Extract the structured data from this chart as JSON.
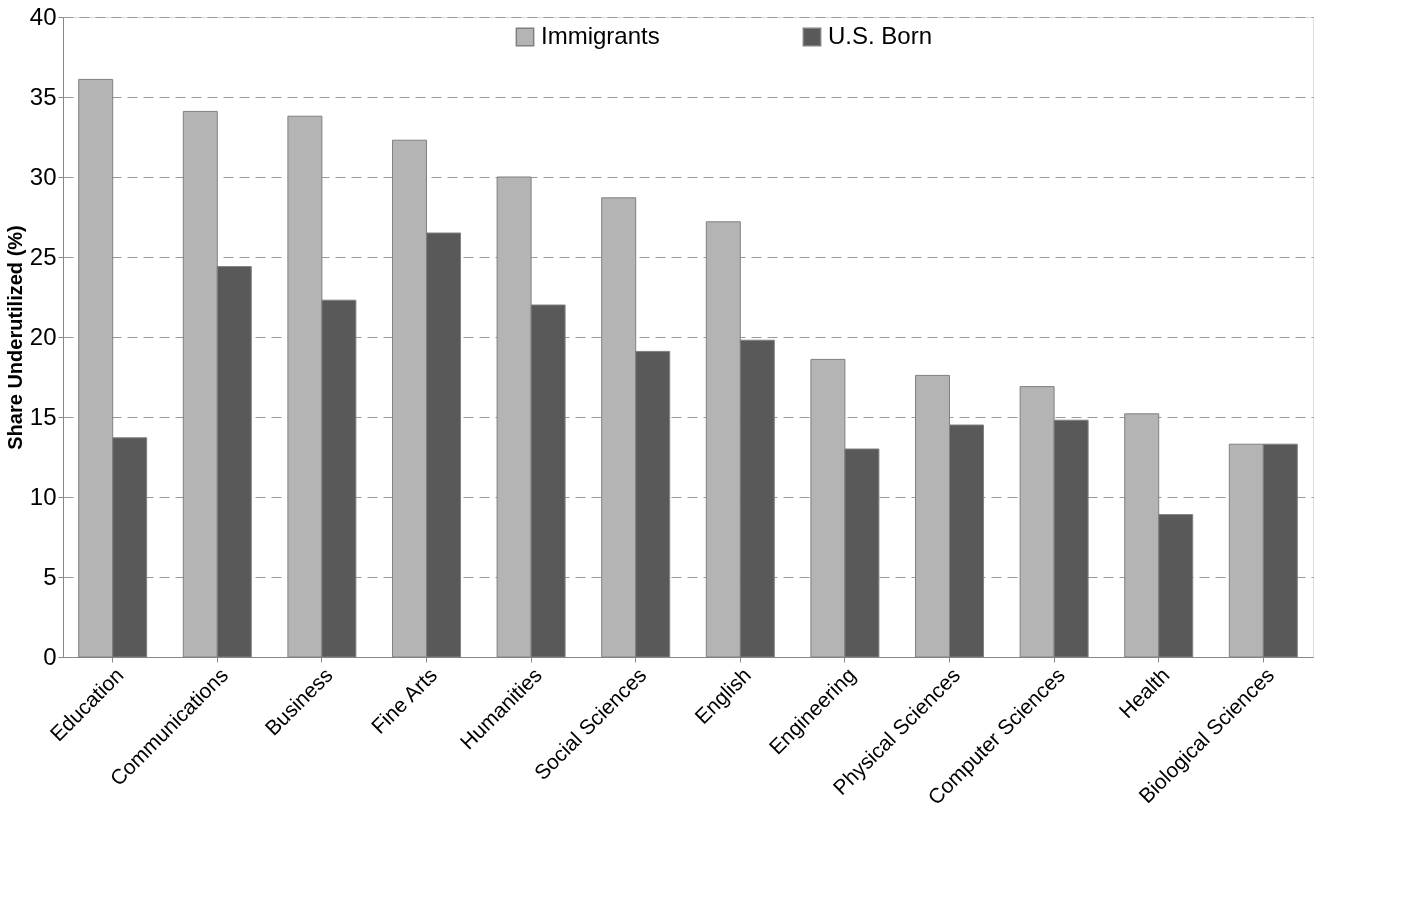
{
  "chart_data": {
    "type": "bar",
    "ylabel": "Share Underutilized  (%)",
    "categories": [
      "Education",
      "Communications",
      "Business",
      "Fine Arts",
      "Humanities",
      "Social Sciences",
      "English",
      "Engineering",
      "Physical Sciences",
      "Computer Sciences",
      "Health",
      "Biological Sciences"
    ],
    "series": [
      {
        "name": "Immigrants",
        "color": "#b4b4b4",
        "values": [
          36.1,
          34.1,
          33.8,
          32.3,
          30.0,
          28.7,
          27.2,
          18.6,
          17.6,
          16.9,
          15.2,
          13.3
        ]
      },
      {
        "name": "U.S. Born",
        "color": "#595959",
        "values": [
          13.7,
          24.4,
          22.3,
          26.5,
          22.0,
          19.1,
          19.8,
          13.0,
          14.5,
          14.8,
          8.9,
          13.3
        ]
      }
    ],
    "ylim": [
      0,
      40
    ],
    "yticks": [
      0,
      5,
      10,
      15,
      20,
      25,
      30,
      35,
      40
    ],
    "grid": "y",
    "legend": "top"
  }
}
